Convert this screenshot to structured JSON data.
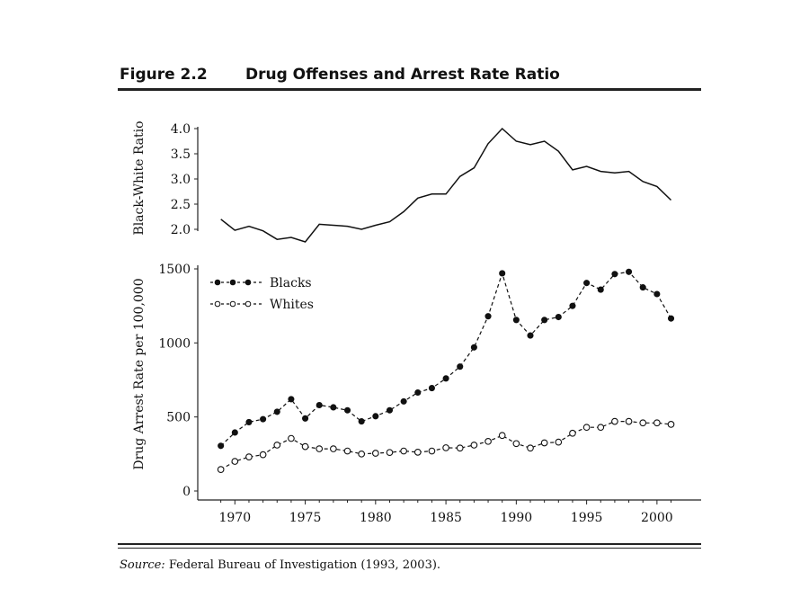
{
  "figure": {
    "number": "Figure 2.2",
    "title": "Drug Offenses and Arrest Rate Ratio",
    "source_label": "Source:",
    "source_text": "Federal Bureau of Investigation (1993, 2003)."
  },
  "chart_data": [
    {
      "type": "line",
      "ylabel": "Black-White Ratio",
      "xlabel": "",
      "ylim": [
        2.0,
        4.0
      ],
      "yticks": [
        "4.0",
        "3.5",
        "3.0",
        "2.5",
        "2.0"
      ],
      "ytick_values": [
        4.0,
        3.5,
        3.0,
        2.5,
        2.0
      ],
      "x": [
        1969,
        1970,
        1971,
        1972,
        1973,
        1974,
        1975,
        1976,
        1977,
        1978,
        1979,
        1980,
        1981,
        1982,
        1983,
        1984,
        1985,
        1986,
        1987,
        1988,
        1989,
        1990,
        1991,
        1992,
        1993,
        1994,
        1995,
        1996,
        1997,
        1998,
        1999,
        2000,
        2001
      ],
      "series": [
        {
          "values": [
            2.2,
            1.98,
            2.06,
            1.97,
            1.8,
            1.84,
            1.75,
            2.1,
            2.08,
            2.06,
            2.0,
            2.08,
            2.15,
            2.35,
            2.62,
            2.7,
            2.7,
            3.05,
            3.22,
            3.7,
            4.0,
            3.75,
            3.68,
            3.75,
            3.55,
            3.18,
            3.25,
            3.15,
            3.12,
            3.15,
            2.95,
            2.85,
            2.58
          ]
        }
      ]
    },
    {
      "type": "line",
      "ylabel": "Drug Arrest Rate per 100,000",
      "xlabel": "",
      "ylim": [
        0,
        1500
      ],
      "yticks": [
        "1500",
        "1000",
        "500",
        "0"
      ],
      "ytick_values": [
        1500,
        1000,
        500,
        0
      ],
      "xlim": [
        1968,
        2002.5
      ],
      "xticks": [
        "1970",
        "1975",
        "1980",
        "1985",
        "1990",
        "1995",
        "2000"
      ],
      "xtick_values": [
        1970,
        1975,
        1980,
        1985,
        1990,
        1995,
        2000
      ],
      "legend_position": "top-left",
      "x": [
        1969,
        1970,
        1971,
        1972,
        1973,
        1974,
        1975,
        1976,
        1977,
        1978,
        1979,
        1980,
        1981,
        1982,
        1983,
        1984,
        1985,
        1986,
        1987,
        1988,
        1989,
        1990,
        1991,
        1992,
        1993,
        1994,
        1995,
        1996,
        1997,
        1998,
        1999,
        2000,
        2001
      ],
      "series": [
        {
          "name": "Blacks",
          "marker": "filled",
          "values": [
            305,
            395,
            465,
            485,
            535,
            620,
            490,
            580,
            565,
            545,
            470,
            505,
            545,
            605,
            665,
            695,
            760,
            840,
            970,
            1180,
            1470,
            1155,
            1050,
            1155,
            1175,
            1250,
            1405,
            1360,
            1465,
            1480,
            1375,
            1330,
            1165
          ]
        },
        {
          "name": "Whites",
          "marker": "open",
          "values": [
            145,
            200,
            230,
            245,
            310,
            355,
            300,
            285,
            285,
            270,
            250,
            255,
            260,
            270,
            262,
            270,
            292,
            290,
            310,
            335,
            375,
            320,
            290,
            325,
            330,
            390,
            430,
            430,
            470,
            470,
            460,
            460,
            450
          ]
        }
      ]
    }
  ]
}
